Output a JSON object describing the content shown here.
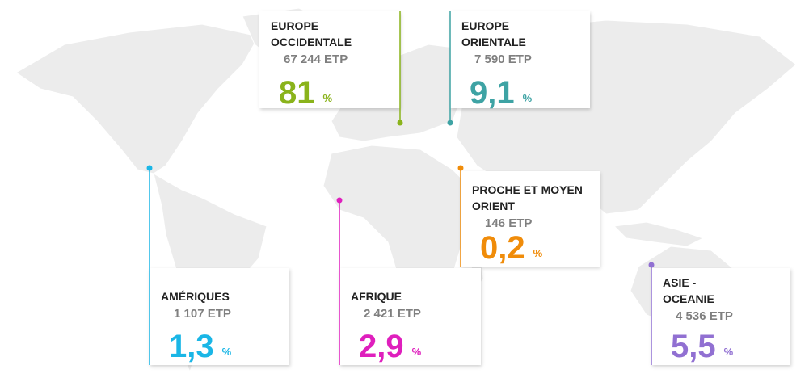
{
  "percent_sign": "%",
  "regions": [
    {
      "name_lines": [
        "EUROPE",
        "OCCIDENTALE"
      ],
      "etp": "67 244 ETP",
      "percent": "81",
      "color": "#8ab31b"
    },
    {
      "name_lines": [
        "EUROPE",
        "ORIENTALE"
      ],
      "etp": "7 590 ETP",
      "percent": "9,1",
      "color": "#3ea3a4"
    },
    {
      "name_lines": [
        "PROCHE ET MOYEN",
        "ORIENT"
      ],
      "etp": "146 ETP",
      "percent": "0,2",
      "color": "#f08c0a"
    },
    {
      "name_lines": [
        "AMÉRIQUES"
      ],
      "etp": "1 107 ETP",
      "percent": "1,3",
      "color": "#1ab6e6"
    },
    {
      "name_lines": [
        "AFRIQUE"
      ],
      "etp": "2 421 ETP",
      "percent": "2,9",
      "color": "#df1fbd"
    },
    {
      "name_lines": [
        "ASIE -",
        "OCEANIE"
      ],
      "etp": "4 536 ETP",
      "percent": "5,5",
      "color": "#9170d2"
    }
  ]
}
